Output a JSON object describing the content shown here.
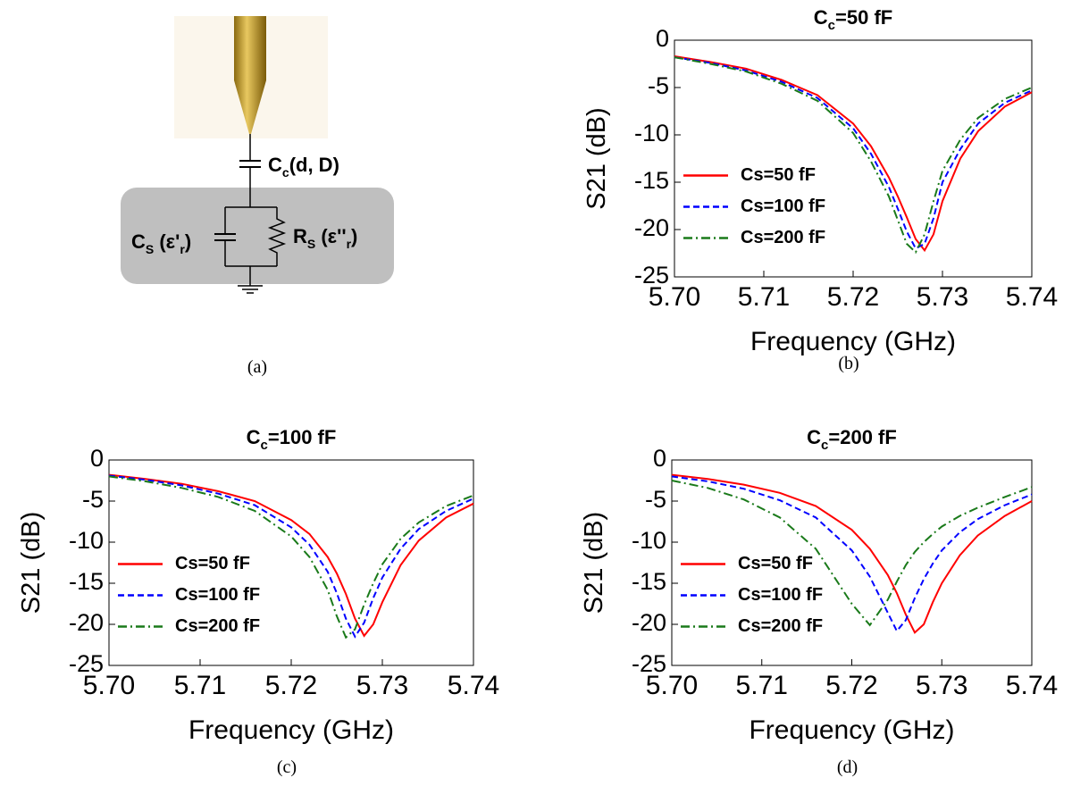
{
  "diagram": {
    "coupling": [
      "C",
      "c",
      "(d, D)"
    ],
    "sample_capacitance": [
      "C",
      "S",
      " (ε'",
      "r",
      ")"
    ],
    "sample_resistance": [
      "R",
      "S",
      " (ε''",
      "r",
      ")"
    ],
    "caption": "(a)"
  },
  "chart_data": [
    {
      "type": "line",
      "title": [
        "C",
        "c",
        "=50 fF"
      ],
      "caption": "(b)",
      "xlabel": "Frequency (GHz)",
      "ylabel": "S21 (dB)",
      "x": [
        5.7,
        5.704,
        5.708,
        5.712,
        5.716,
        5.72,
        5.722,
        5.724,
        5.725,
        5.726,
        5.727,
        5.728,
        5.729,
        5.73,
        5.732,
        5.734,
        5.737,
        5.74
      ],
      "xlim": [
        5.7,
        5.74
      ],
      "xticks": [
        {
          "value": 5.7,
          "label": "5.70"
        },
        {
          "value": 5.71,
          "label": "5.71"
        },
        {
          "value": 5.72,
          "label": "5.72"
        },
        {
          "value": 5.73,
          "label": "5.73"
        },
        {
          "value": 5.74,
          "label": "5.74"
        }
      ],
      "ylim": [
        -25,
        0
      ],
      "yticks": [
        0,
        -5,
        -10,
        -15,
        -20,
        -25
      ],
      "legend": "lower left",
      "series": [
        {
          "name": "Cs=50 fF",
          "color": "#ff0000",
          "dash": "solid",
          "values": [
            -1.7,
            -2.3,
            -3.0,
            -4.2,
            -5.8,
            -8.8,
            -11.2,
            -14.5,
            -16.5,
            -18.7,
            -21.0,
            -22.2,
            -20.5,
            -17.0,
            -12.5,
            -9.6,
            -7.0,
            -5.5
          ]
        },
        {
          "name": "Cs=100 fF",
          "color": "#0000ff",
          "dash": "dashed",
          "values": [
            -1.8,
            -2.4,
            -3.2,
            -4.4,
            -6.1,
            -9.3,
            -12.0,
            -15.5,
            -17.8,
            -20.2,
            -22.0,
            -21.5,
            -18.8,
            -15.0,
            -11.5,
            -8.8,
            -6.6,
            -5.3
          ]
        },
        {
          "name": "Cs=200 fF",
          "color": "#1a7a1a",
          "dash": "dashdot",
          "values": [
            -1.8,
            -2.5,
            -3.3,
            -4.6,
            -6.4,
            -9.8,
            -12.8,
            -16.5,
            -19.0,
            -21.5,
            -22.4,
            -20.5,
            -17.0,
            -13.8,
            -10.5,
            -8.2,
            -6.2,
            -5.0
          ]
        }
      ]
    },
    {
      "type": "line",
      "title": [
        "C",
        "c",
        "=100 fF"
      ],
      "caption": "(c)",
      "xlabel": "Frequency (GHz)",
      "ylabel": "S21 (dB)",
      "x": [
        5.7,
        5.704,
        5.708,
        5.712,
        5.716,
        5.72,
        5.722,
        5.724,
        5.725,
        5.726,
        5.727,
        5.728,
        5.729,
        5.73,
        5.732,
        5.734,
        5.737,
        5.74
      ],
      "xlim": [
        5.7,
        5.74
      ],
      "xticks": [
        {
          "value": 5.7,
          "label": "5.70"
        },
        {
          "value": 5.71,
          "label": "5.71"
        },
        {
          "value": 5.72,
          "label": "5.72"
        },
        {
          "value": 5.73,
          "label": "5.73"
        },
        {
          "value": 5.74,
          "label": "5.74"
        }
      ],
      "ylim": [
        -25,
        0
      ],
      "yticks": [
        0,
        -5,
        -10,
        -15,
        -20,
        -25
      ],
      "legend": "lower left",
      "series": [
        {
          "name": "Cs=50 fF",
          "color": "#ff0000",
          "dash": "solid",
          "values": [
            -1.8,
            -2.3,
            -2.9,
            -3.8,
            -5.0,
            -7.3,
            -9.0,
            -11.8,
            -13.8,
            -16.3,
            -19.3,
            -21.4,
            -20.0,
            -17.3,
            -12.8,
            -9.8,
            -7.0,
            -5.3
          ]
        },
        {
          "name": "Cs=100 fF",
          "color": "#0000ff",
          "dash": "dashed",
          "values": [
            -1.9,
            -2.4,
            -3.1,
            -4.1,
            -5.5,
            -8.2,
            -10.3,
            -13.6,
            -16.2,
            -19.3,
            -21.5,
            -19.8,
            -16.8,
            -14.3,
            -10.8,
            -8.4,
            -6.2,
            -4.7
          ]
        },
        {
          "name": "Cs=200 fF",
          "color": "#1a7a1a",
          "dash": "dashdot",
          "values": [
            -2.0,
            -2.6,
            -3.4,
            -4.5,
            -6.2,
            -9.3,
            -11.8,
            -15.8,
            -19.0,
            -21.6,
            -20.6,
            -17.6,
            -15.0,
            -12.7,
            -9.6,
            -7.6,
            -5.6,
            -4.3
          ]
        }
      ]
    },
    {
      "type": "line",
      "title": [
        "C",
        "c",
        "=200 fF"
      ],
      "caption": "(d)",
      "xlabel": "Frequency (GHz)",
      "ylabel": "S21 (dB)",
      "x": [
        5.7,
        5.704,
        5.708,
        5.712,
        5.716,
        5.72,
        5.722,
        5.724,
        5.725,
        5.726,
        5.727,
        5.728,
        5.729,
        5.73,
        5.732,
        5.734,
        5.737,
        5.74
      ],
      "xlim": [
        5.7,
        5.74
      ],
      "xticks": [
        {
          "value": 5.7,
          "label": "5.70"
        },
        {
          "value": 5.71,
          "label": "5.71"
        },
        {
          "value": 5.72,
          "label": "5.72"
        },
        {
          "value": 5.73,
          "label": "5.73"
        },
        {
          "value": 5.74,
          "label": "5.74"
        }
      ],
      "ylim": [
        -25,
        0
      ],
      "yticks": [
        0,
        -5,
        -10,
        -15,
        -20,
        -25
      ],
      "legend": "lower left",
      "series": [
        {
          "name": "Cs=50 fF",
          "color": "#ff0000",
          "dash": "solid",
          "values": [
            -1.8,
            -2.3,
            -3.0,
            -4.0,
            -5.6,
            -8.5,
            -10.8,
            -14.0,
            -16.2,
            -18.8,
            -21.0,
            -20.0,
            -17.3,
            -15.0,
            -11.6,
            -9.2,
            -6.8,
            -5.0
          ]
        },
        {
          "name": "Cs=100 fF",
          "color": "#0000ff",
          "dash": "dashed",
          "values": [
            -2.0,
            -2.6,
            -3.5,
            -4.9,
            -7.0,
            -11.0,
            -14.2,
            -18.6,
            -20.8,
            -19.5,
            -16.8,
            -14.5,
            -12.6,
            -11.0,
            -8.8,
            -7.2,
            -5.5,
            -4.2
          ]
        },
        {
          "name": "Cs=200 fF",
          "color": "#1a7a1a",
          "dash": "dashdot",
          "values": [
            -2.5,
            -3.4,
            -4.8,
            -7.0,
            -10.8,
            -17.5,
            -20.1,
            -17.0,
            -14.8,
            -12.8,
            -11.2,
            -10.0,
            -9.0,
            -8.1,
            -6.8,
            -5.8,
            -4.5,
            -3.3
          ]
        }
      ]
    }
  ]
}
